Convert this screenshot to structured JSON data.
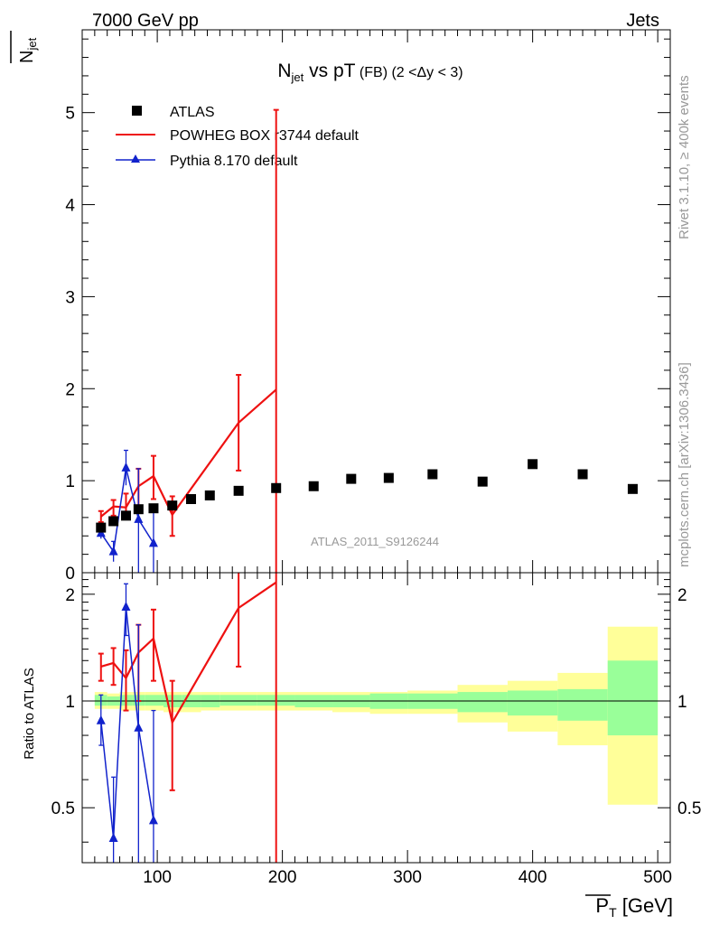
{
  "header": {
    "left": "7000 GeV pp",
    "right": "Jets"
  },
  "side_labels": {
    "rivet": "Rivet 3.1.10, ≥ 400k events",
    "mcplots": "mcplots.cern.ch [arXiv:1306.3436]"
  },
  "colors": {
    "data": "#000000",
    "powheg": "#ee1111",
    "pythia": "#1122cc",
    "band_yellow": "#ffff99",
    "band_green": "#99ff99",
    "watermark": "#999999"
  },
  "chart_data": [
    {
      "type": "scatter",
      "title_main": "N",
      "title_sub": "jet",
      "title_rest": " vs pT",
      "title_small": " (FB) (2 <Δy < 3)",
      "ylabel_main": "N",
      "ylabel_sub": "jet",
      "watermark": "ATLAS_2011_S9126244",
      "xlim": [
        40,
        510
      ],
      "ylim": [
        0,
        5.9
      ],
      "yticks": [
        0,
        1,
        2,
        3,
        4,
        5
      ],
      "series": [
        {
          "name": "ATLAS",
          "style": "markers",
          "points": [
            {
              "x": 55,
              "y": 0.49
            },
            {
              "x": 65,
              "y": 0.56
            },
            {
              "x": 75,
              "y": 0.62
            },
            {
              "x": 85,
              "y": 0.69
            },
            {
              "x": 97,
              "y": 0.7
            },
            {
              "x": 112,
              "y": 0.73
            },
            {
              "x": 127,
              "y": 0.8
            },
            {
              "x": 142,
              "y": 0.84
            },
            {
              "x": 165,
              "y": 0.89
            },
            {
              "x": 195,
              "y": 0.92
            },
            {
              "x": 225,
              "y": 0.94
            },
            {
              "x": 255,
              "y": 1.02
            },
            {
              "x": 285,
              "y": 1.03
            },
            {
              "x": 320,
              "y": 1.07
            },
            {
              "x": 360,
              "y": 0.99
            },
            {
              "x": 400,
              "y": 1.18
            },
            {
              "x": 440,
              "y": 1.07
            },
            {
              "x": 480,
              "y": 0.91
            }
          ]
        },
        {
          "name": "POWHEG BOX r3744 default",
          "style": "line",
          "points": [
            {
              "x": 55,
              "y": 0.61,
              "lo": 0.55,
              "hi": 0.67
            },
            {
              "x": 65,
              "y": 0.72,
              "lo": 0.62,
              "hi": 0.79
            },
            {
              "x": 75,
              "y": 0.71,
              "lo": 0.58,
              "hi": 0.86
            },
            {
              "x": 85,
              "y": 0.94,
              "lo": 0.69,
              "hi": 1.13
            },
            {
              "x": 97,
              "y": 1.05,
              "lo": 0.8,
              "hi": 1.27
            },
            {
              "x": 112,
              "y": 0.63,
              "lo": 0.4,
              "hi": 0.83
            },
            {
              "x": 165,
              "y": 1.63,
              "lo": 1.11,
              "hi": 2.15
            },
            {
              "x": 195,
              "y": 1.99,
              "lo": -1.0,
              "hi": 5.03
            }
          ]
        },
        {
          "name": "Pythia 8.170 default",
          "style": "line-triangles",
          "points": [
            {
              "x": 55,
              "y": 0.43,
              "lo": 0.37,
              "hi": 0.51
            },
            {
              "x": 65,
              "y": 0.23,
              "lo": 0.12,
              "hi": 0.34
            },
            {
              "x": 75,
              "y": 1.14,
              "lo": 0.95,
              "hi": 1.33
            },
            {
              "x": 85,
              "y": 0.58,
              "lo": 0.0,
              "hi": 1.13
            },
            {
              "x": 97,
              "y": 0.32,
              "lo": 0.0,
              "hi": 0.66
            }
          ]
        }
      ]
    },
    {
      "type": "line",
      "ylabel": "Ratio to ATLAS",
      "xlabel_main": "P",
      "xlabel_sub": "T",
      "xlabel_unit": " [GeV]",
      "xlim": [
        40,
        510
      ],
      "ylim": [
        0.35,
        2.3
      ],
      "xticks": [
        100,
        200,
        300,
        400,
        500
      ],
      "yticks": [
        0.5,
        1,
        2
      ],
      "reference": 1,
      "bands": [
        {
          "x0": 50,
          "x1": 60,
          "y_lo": 0.95,
          "y_hi": 1.06,
          "g_lo": 0.97,
          "g_hi": 1.04
        },
        {
          "x0": 60,
          "x1": 70,
          "y_lo": 0.95,
          "y_hi": 1.05,
          "g_lo": 0.97,
          "g_hi": 1.03
        },
        {
          "x0": 70,
          "x1": 80,
          "y_lo": 0.94,
          "y_hi": 1.06,
          "g_lo": 0.97,
          "g_hi": 1.04
        },
        {
          "x0": 80,
          "x1": 90,
          "y_lo": 0.94,
          "y_hi": 1.06,
          "g_lo": 0.97,
          "g_hi": 1.04
        },
        {
          "x0": 90,
          "x1": 105,
          "y_lo": 0.94,
          "y_hi": 1.06,
          "g_lo": 0.97,
          "g_hi": 1.04
        },
        {
          "x0": 105,
          "x1": 120,
          "y_lo": 0.93,
          "y_hi": 1.06,
          "g_lo": 0.96,
          "g_hi": 1.04
        },
        {
          "x0": 120,
          "x1": 135,
          "y_lo": 0.93,
          "y_hi": 1.06,
          "g_lo": 0.96,
          "g_hi": 1.04
        },
        {
          "x0": 135,
          "x1": 150,
          "y_lo": 0.94,
          "y_hi": 1.06,
          "g_lo": 0.96,
          "g_hi": 1.04
        },
        {
          "x0": 150,
          "x1": 180,
          "y_lo": 0.94,
          "y_hi": 1.06,
          "g_lo": 0.97,
          "g_hi": 1.04
        },
        {
          "x0": 180,
          "x1": 210,
          "y_lo": 0.94,
          "y_hi": 1.06,
          "g_lo": 0.97,
          "g_hi": 1.04
        },
        {
          "x0": 210,
          "x1": 240,
          "y_lo": 0.94,
          "y_hi": 1.06,
          "g_lo": 0.96,
          "g_hi": 1.04
        },
        {
          "x0": 240,
          "x1": 270,
          "y_lo": 0.93,
          "y_hi": 1.06,
          "g_lo": 0.96,
          "g_hi": 1.04
        },
        {
          "x0": 270,
          "x1": 300,
          "y_lo": 0.92,
          "y_hi": 1.06,
          "g_lo": 0.95,
          "g_hi": 1.05
        },
        {
          "x0": 300,
          "x1": 340,
          "y_lo": 0.92,
          "y_hi": 1.07,
          "g_lo": 0.95,
          "g_hi": 1.05
        },
        {
          "x0": 340,
          "x1": 380,
          "y_lo": 0.87,
          "y_hi": 1.11,
          "g_lo": 0.93,
          "g_hi": 1.06
        },
        {
          "x0": 380,
          "x1": 420,
          "y_lo": 0.82,
          "y_hi": 1.14,
          "g_lo": 0.91,
          "g_hi": 1.07
        },
        {
          "x0": 420,
          "x1": 460,
          "y_lo": 0.75,
          "y_hi": 1.2,
          "g_lo": 0.88,
          "g_hi": 1.08
        },
        {
          "x0": 460,
          "x1": 500,
          "y_lo": 0.51,
          "y_hi": 1.62,
          "g_lo": 0.8,
          "g_hi": 1.3
        }
      ],
      "series": [
        {
          "name": "POWHEG BOX r3744 default",
          "points": [
            {
              "x": 55,
              "y": 1.25,
              "lo": 1.14,
              "hi": 1.36
            },
            {
              "x": 65,
              "y": 1.28,
              "lo": 1.11,
              "hi": 1.41
            },
            {
              "x": 75,
              "y": 1.16,
              "lo": 0.94,
              "hi": 1.39
            },
            {
              "x": 85,
              "y": 1.37,
              "lo": 1.0,
              "hi": 1.64
            },
            {
              "x": 97,
              "y": 1.5,
              "lo": 1.14,
              "hi": 1.81
            },
            {
              "x": 112,
              "y": 0.87,
              "lo": 0.56,
              "hi": 1.14
            },
            {
              "x": 165,
              "y": 1.83,
              "lo": 1.25,
              "hi": 2.41
            },
            {
              "x": 195,
              "y": 2.16,
              "lo": 0.2,
              "hi": 5.4
            }
          ]
        },
        {
          "name": "Pythia 8.170 default",
          "points": [
            {
              "x": 55,
              "y": 0.88,
              "lo": 0.75,
              "hi": 1.04
            },
            {
              "x": 65,
              "y": 0.41,
              "lo": 0.21,
              "hi": 0.61
            },
            {
              "x": 75,
              "y": 1.84,
              "lo": 1.53,
              "hi": 2.14
            },
            {
              "x": 85,
              "y": 0.84,
              "lo": 0.2,
              "hi": 1.64
            },
            {
              "x": 97,
              "y": 0.46,
              "lo": 0.2,
              "hi": 0.94
            }
          ]
        }
      ]
    }
  ]
}
